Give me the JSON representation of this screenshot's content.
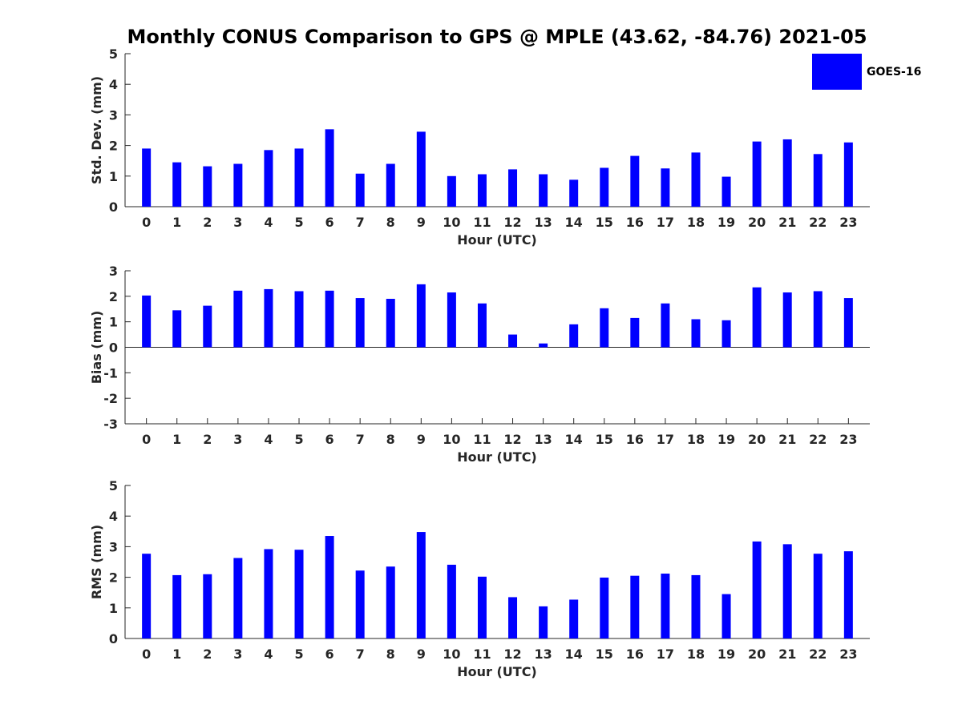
{
  "chart_data": {
    "type": "bar",
    "title": "Monthly CONUS Comparison to GPS @ MPLE (43.62, -84.76) 2021-05",
    "legend": {
      "entries": [
        "GOES-16"
      ],
      "placement": "top-right"
    },
    "bar_color": "#0000ff",
    "categories": [
      "0",
      "1",
      "2",
      "3",
      "4",
      "5",
      "6",
      "7",
      "8",
      "9",
      "10",
      "11",
      "12",
      "13",
      "14",
      "15",
      "16",
      "17",
      "18",
      "19",
      "20",
      "21",
      "22",
      "23"
    ],
    "panels": [
      {
        "name": "std-dev",
        "ylabel": "Std. Dev. (mm)",
        "xlabel": "Hour (UTC)",
        "ylim": [
          0,
          5
        ],
        "yticks": [
          "0",
          "1",
          "2",
          "3",
          "4",
          "5"
        ],
        "series": [
          {
            "name": "GOES-16",
            "values": [
              1.9,
              1.45,
              1.32,
              1.4,
              1.85,
              1.9,
              2.53,
              1.08,
              1.4,
              2.45,
              1.0,
              1.06,
              1.22,
              1.06,
              0.88,
              1.27,
              1.66,
              1.25,
              1.77,
              0.98,
              2.13,
              2.2,
              1.72,
              2.1
            ]
          }
        ]
      },
      {
        "name": "bias",
        "ylabel": "Bias (mm)",
        "xlabel": "Hour (UTC)",
        "ylim": [
          -3,
          3
        ],
        "yticks": [
          "-3",
          "-2",
          "-1",
          "0",
          "1",
          "2",
          "3"
        ],
        "zero_line": true,
        "series": [
          {
            "name": "GOES-16",
            "values": [
              2.03,
              1.45,
              1.63,
              2.22,
              2.28,
              2.2,
              2.22,
              1.93,
              1.9,
              2.47,
              2.15,
              1.72,
              0.5,
              0.15,
              0.9,
              1.53,
              1.15,
              1.72,
              1.1,
              1.06,
              2.35,
              2.15,
              2.2,
              1.93
            ]
          }
        ]
      },
      {
        "name": "rms",
        "ylabel": "RMS (mm)",
        "xlabel": "Hour (UTC)",
        "ylim": [
          0,
          5
        ],
        "yticks": [
          "0",
          "1",
          "2",
          "3",
          "4",
          "5"
        ],
        "series": [
          {
            "name": "GOES-16",
            "values": [
              2.77,
              2.07,
              2.1,
              2.63,
              2.92,
              2.9,
              3.35,
              2.22,
              2.35,
              3.48,
              2.41,
              2.02,
              1.35,
              1.05,
              1.27,
              1.99,
              2.05,
              2.12,
              2.07,
              1.45,
              3.17,
              3.08,
              2.77,
              2.85
            ]
          }
        ]
      }
    ]
  }
}
